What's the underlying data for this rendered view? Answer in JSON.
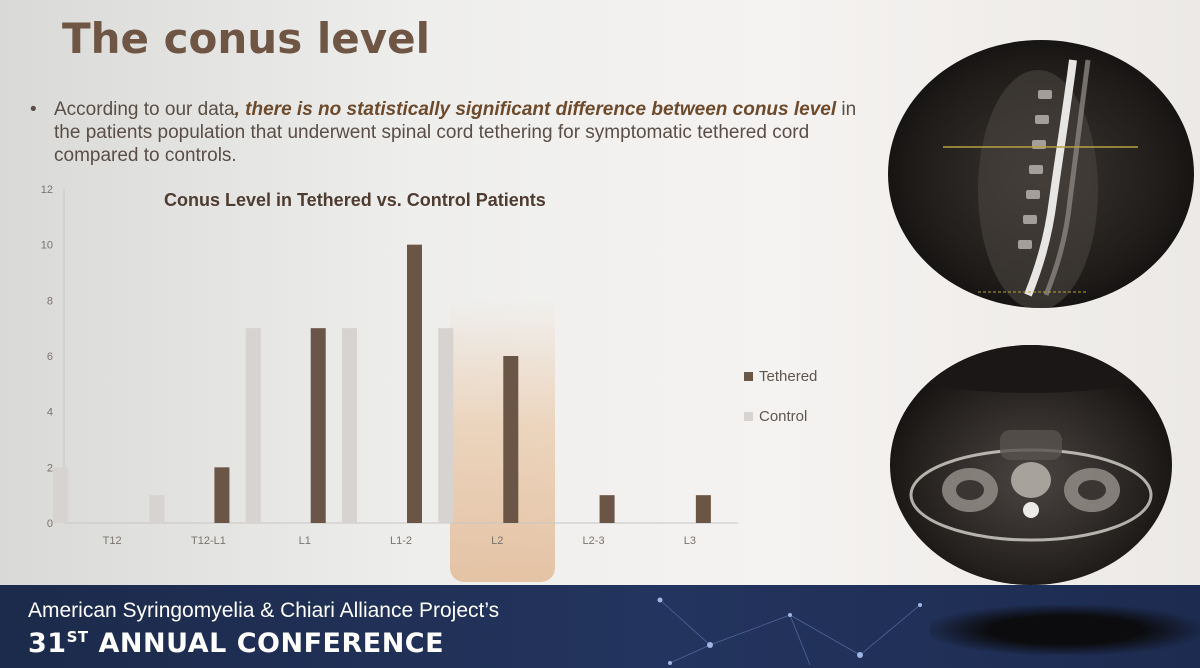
{
  "slide": {
    "title": "The conus level",
    "bullet": {
      "marker": "•",
      "text_before": "According to our data",
      "text_emphasis": ", there is no statistically significant difference between conus level",
      "text_after": " in the patients population that underwent spinal cord tethering for symptomatic tethered cord compared to controls."
    }
  },
  "chart_data": {
    "type": "bar",
    "title": "Conus Level in Tethered vs. Control Patients",
    "xlabel": "",
    "ylabel": "",
    "categories": [
      "T12",
      "T12-L1",
      "L1",
      "L1-2",
      "L2",
      "L2-3",
      "L3"
    ],
    "series": [
      {
        "name": "Tethered",
        "values": [
          0,
          2,
          7,
          10,
          6,
          1,
          1
        ],
        "color": "#6b5546"
      },
      {
        "name": "Control",
        "values": [
          2,
          1,
          7,
          7,
          7,
          0,
          0
        ],
        "color": "#d6d3d1"
      }
    ],
    "ylim": [
      0,
      12
    ],
    "yticks": [
      "0",
      "2",
      "4",
      "6",
      "8",
      "10",
      "12"
    ],
    "grid": false,
    "legend": "right"
  },
  "banner": {
    "line1": "American Syringomyelia & Chiari Alliance Project’s",
    "line2_num": "31",
    "line2_sup": "ST",
    "line2_rest": " ANNUAL CONFERENCE"
  },
  "images": {
    "top": "sagittal-spine-mri-icon",
    "bottom": "axial-spine-mri-icon"
  }
}
